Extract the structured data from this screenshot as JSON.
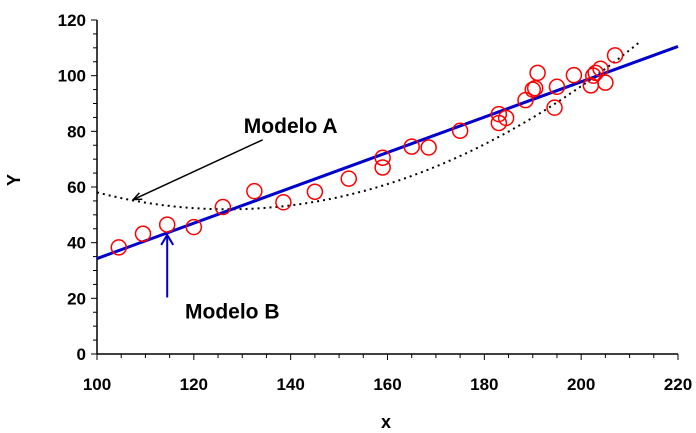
{
  "chart_data": {
    "type": "scatter",
    "xlabel": "x",
    "ylabel": "Y",
    "xlim": [
      100,
      220
    ],
    "ylim": [
      0,
      120
    ],
    "x_ticks": [
      100,
      120,
      140,
      160,
      180,
      200,
      220
    ],
    "y_ticks": [
      0,
      20,
      40,
      60,
      80,
      100,
      120
    ],
    "grid": false,
    "colors": {
      "points": "#ff0000",
      "model_b": "#0000cc",
      "model_a": "#000000"
    },
    "points": [
      {
        "x": 104.5,
        "y": 38.3
      },
      {
        "x": 109.5,
        "y": 43.2
      },
      {
        "x": 114.5,
        "y": 46.5
      },
      {
        "x": 120.0,
        "y": 45.6
      },
      {
        "x": 126.0,
        "y": 52.8
      },
      {
        "x": 132.5,
        "y": 58.5
      },
      {
        "x": 138.5,
        "y": 54.5
      },
      {
        "x": 145.0,
        "y": 58.3
      },
      {
        "x": 152.0,
        "y": 63.0
      },
      {
        "x": 159.0,
        "y": 70.5
      },
      {
        "x": 159.0,
        "y": 67.0
      },
      {
        "x": 165.0,
        "y": 74.5
      },
      {
        "x": 168.5,
        "y": 74.2
      },
      {
        "x": 175.0,
        "y": 80.2
      },
      {
        "x": 183.0,
        "y": 86.2
      },
      {
        "x": 183.0,
        "y": 83.0
      },
      {
        "x": 184.5,
        "y": 84.8
      },
      {
        "x": 188.5,
        "y": 91.2
      },
      {
        "x": 190.0,
        "y": 95.0
      },
      {
        "x": 190.5,
        "y": 95.5
      },
      {
        "x": 191.0,
        "y": 101.0
      },
      {
        "x": 194.5,
        "y": 88.5
      },
      {
        "x": 195.0,
        "y": 96.0
      },
      {
        "x": 198.5,
        "y": 100.2
      },
      {
        "x": 202.0,
        "y": 96.5
      },
      {
        "x": 202.5,
        "y": 100.0
      },
      {
        "x": 203.0,
        "y": 101.0
      },
      {
        "x": 204.0,
        "y": 102.5
      },
      {
        "x": 205.0,
        "y": 97.5
      },
      {
        "x": 207.0,
        "y": 107.3
      }
    ],
    "model_b_line": [
      {
        "x": 100,
        "y": 34.3
      },
      {
        "x": 220,
        "y": 110.5
      }
    ],
    "model_a_curve": {
      "x_from": 100,
      "x_to": 212,
      "vertex_x": 127,
      "vertex_y": 52,
      "coef": 0.0083
    },
    "annotations": [
      {
        "text": "Modelo A",
        "data_x": 140,
        "data_y": 82,
        "arrow_to_x": 107.5,
        "arrow_to_y": 55.5
      },
      {
        "text": "Modelo B",
        "data_x": 130,
        "data_y": 16,
        "arrow_to_x": 114.5,
        "arrow_to_y": 43.5
      }
    ]
  }
}
